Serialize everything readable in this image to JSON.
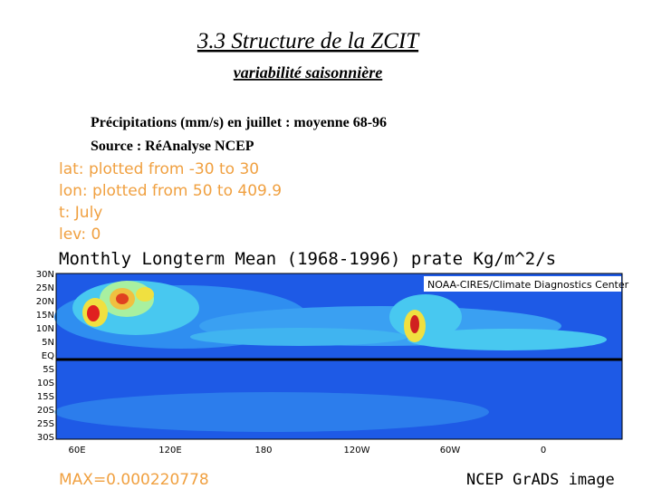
{
  "header": {
    "title": "3.3 Structure de la ZCIT",
    "subtitle": "variabilité saisonnière"
  },
  "caption": {
    "line1": "Précipitations (mm/s) en juillet : moyenne 68-96",
    "line2": "Source :  RéAnalyse NCEP"
  },
  "grads": {
    "info": [
      "lat: plotted from -30 to 30",
      "lon: plotted from 50 to 409.9",
      "t: July",
      "lev: 0"
    ],
    "plot_title": "Monthly Longterm Mean (1968-1996) prate Kg/m^2/s",
    "credit": "NOAA-CIRES/Climate Diagnostics Center",
    "lat_labels": [
      "30N",
      "25N",
      "20N",
      "15N",
      "10N",
      "5N",
      "EQ",
      "5S",
      "10S",
      "15S",
      "20S",
      "25S",
      "30S"
    ],
    "lon_labels": [
      "60E",
      "120E",
      "180",
      "120W",
      "60W",
      "0"
    ],
    "max_text": "MAX=0.000220778",
    "footer": "NCEP GrADS image"
  }
}
